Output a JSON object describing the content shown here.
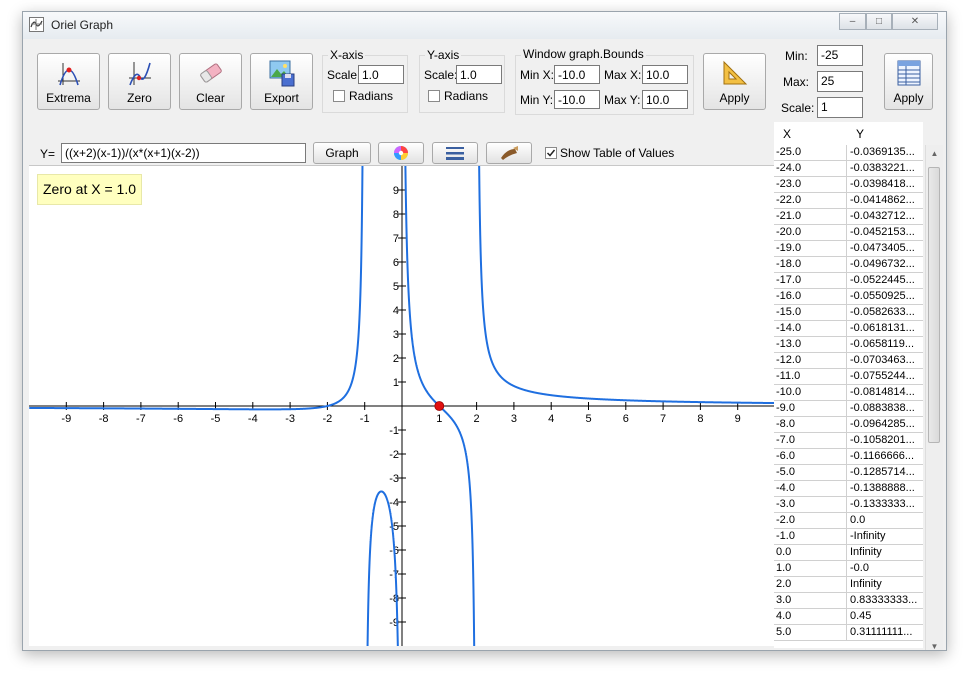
{
  "window": {
    "title": "Oriel Graph"
  },
  "toolbar": {
    "extrema_label": "Extrema",
    "zero_label": "Zero",
    "clear_label": "Clear",
    "export_label": "Export",
    "apply_label": "Apply"
  },
  "xaxis": {
    "title": "X-axis",
    "scale_label": "Scale:",
    "scale_value": "1.0",
    "radians_label": "Radians"
  },
  "yaxis": {
    "title": "Y-axis",
    "scale_label": "Scale:",
    "scale_value": "1.0",
    "radians_label": "Radians"
  },
  "bounds": {
    "title": "Window graph.Bounds",
    "min_x_label": "Min X:",
    "min_x": "-10.0",
    "max_x_label": "Max X:",
    "max_x": "10.0",
    "min_y_label": "Min Y:",
    "min_y": "-10.0",
    "max_y_label": "Max Y:",
    "max_y": "10.0"
  },
  "formula": {
    "label": "Y=",
    "value": "((x+2)(x-1))/(x*(x+1)(x-2))",
    "graph_label": "Graph",
    "show_table_label": "Show Table of Values"
  },
  "table_range": {
    "min_label": "Min:",
    "min": "-25",
    "max_label": "Max:",
    "max": "25",
    "scale_label": "Scale:",
    "scale": "1",
    "apply_label": "Apply"
  },
  "zero_note": "Zero at X = 1.0",
  "table": {
    "col_x": "X",
    "col_y": "Y",
    "rows": [
      {
        "x": "-25.0",
        "y": "-0.0369135..."
      },
      {
        "x": "-24.0",
        "y": "-0.0383221..."
      },
      {
        "x": "-23.0",
        "y": "-0.0398418..."
      },
      {
        "x": "-22.0",
        "y": "-0.0414862..."
      },
      {
        "x": "-21.0",
        "y": "-0.0432712..."
      },
      {
        "x": "-20.0",
        "y": "-0.0452153..."
      },
      {
        "x": "-19.0",
        "y": "-0.0473405..."
      },
      {
        "x": "-18.0",
        "y": "-0.0496732..."
      },
      {
        "x": "-17.0",
        "y": "-0.0522445..."
      },
      {
        "x": "-16.0",
        "y": "-0.0550925..."
      },
      {
        "x": "-15.0",
        "y": "-0.0582633..."
      },
      {
        "x": "-14.0",
        "y": "-0.0618131..."
      },
      {
        "x": "-13.0",
        "y": "-0.0658119..."
      },
      {
        "x": "-12.0",
        "y": "-0.0703463..."
      },
      {
        "x": "-11.0",
        "y": "-0.0755244..."
      },
      {
        "x": "-10.0",
        "y": "-0.0814814..."
      },
      {
        "x": "-9.0",
        "y": "-0.0883838..."
      },
      {
        "x": "-8.0",
        "y": "-0.0964285..."
      },
      {
        "x": "-7.0",
        "y": "-0.1058201..."
      },
      {
        "x": "-6.0",
        "y": "-0.1166666..."
      },
      {
        "x": "-5.0",
        "y": "-0.1285714..."
      },
      {
        "x": "-4.0",
        "y": "-0.1388888..."
      },
      {
        "x": "-3.0",
        "y": "-0.1333333..."
      },
      {
        "x": "-2.0",
        "y": "0.0"
      },
      {
        "x": "-1.0",
        "y": "-Infinity"
      },
      {
        "x": "0.0",
        "y": "Infinity"
      },
      {
        "x": "1.0",
        "y": "-0.0"
      },
      {
        "x": "2.0",
        "y": "Infinity"
      },
      {
        "x": "3.0",
        "y": "0.83333333..."
      },
      {
        "x": "4.0",
        "y": "0.45"
      },
      {
        "x": "5.0",
        "y": "0.31111111..."
      }
    ]
  },
  "chart_data": {
    "type": "line",
    "function": "((x+2)(x-1))/(x*(x+1)(x-2))",
    "xlim": [
      -10,
      10
    ],
    "ylim": [
      -10,
      10
    ],
    "x_ticks": [
      "-9",
      "-8",
      "-7",
      "-6",
      "-5",
      "-4",
      "-3",
      "-2",
      "-1",
      "1",
      "2",
      "3",
      "4",
      "5",
      "6",
      "7",
      "8",
      "9"
    ],
    "y_ticks": [
      "9",
      "8",
      "7",
      "6",
      "5",
      "4",
      "3",
      "2",
      "1",
      "-1",
      "-2",
      "-3",
      "-4",
      "-5",
      "-6",
      "-7",
      "-8",
      "-9"
    ],
    "grid": false,
    "line_color": "#1f6fe0",
    "marked_zero": {
      "x": 1.0,
      "y": 0.0,
      "color": "#e01010"
    }
  }
}
